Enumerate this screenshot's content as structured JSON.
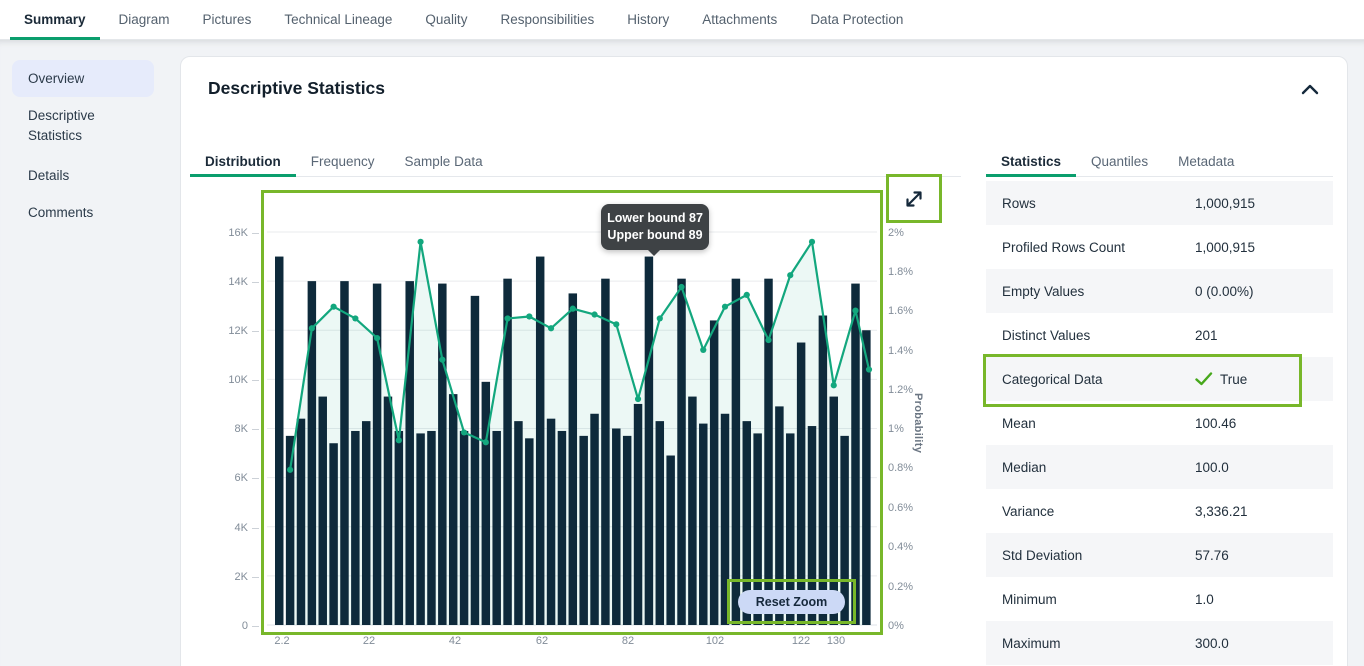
{
  "nav": {
    "tabs": [
      "Summary",
      "Diagram",
      "Pictures",
      "Technical Lineage",
      "Quality",
      "Responsibilities",
      "History",
      "Attachments",
      "Data Protection"
    ],
    "active_tab": "Summary"
  },
  "sidebar": {
    "items": [
      "Overview",
      "Descriptive Statistics",
      "Details",
      "Comments"
    ],
    "active_item": "Overview"
  },
  "panel": {
    "title": "Descriptive Statistics"
  },
  "chart_tabs": {
    "items": [
      "Distribution",
      "Frequency",
      "Sample Data"
    ],
    "active": "Distribution"
  },
  "stats_tabs": {
    "items": [
      "Statistics",
      "Quantiles",
      "Metadata"
    ],
    "active": "Statistics"
  },
  "stats": {
    "rows": [
      {
        "label": "Rows",
        "value": "1,000,915"
      },
      {
        "label": "Profiled Rows Count",
        "value": "1,000,915"
      },
      {
        "label": "Empty Values",
        "value": "0 (0.00%)"
      },
      {
        "label": "Distinct Values",
        "value": "201"
      },
      {
        "label": "Categorical Data",
        "value": "True",
        "check": true
      },
      {
        "label": "Mean",
        "value": "100.46"
      },
      {
        "label": "Median",
        "value": "100.0"
      },
      {
        "label": "Variance",
        "value": "3,336.21"
      },
      {
        "label": "Std Deviation",
        "value": "57.76"
      },
      {
        "label": "Minimum",
        "value": "1.0"
      },
      {
        "label": "Maximum",
        "value": "300.0"
      }
    ]
  },
  "chart_data": {
    "type": "bar",
    "subtype": "histogram_with_probability_line",
    "x_axis": {
      "ticks": [
        "2.2",
        "22",
        "42",
        "62",
        "82",
        "102",
        "122",
        "130"
      ]
    },
    "y_axis_left": {
      "ticks_top_to_bottom": [
        "16K",
        "14K",
        "12K",
        "10K",
        "8K",
        "6K",
        "4K",
        "2K",
        "0"
      ],
      "max_value": 16000
    },
    "y_axis_right": {
      "label": "Probability",
      "ticks_top_to_bottom": [
        "2%",
        "1.8%",
        "1.6%",
        "1.4%",
        "1.2%",
        "1%",
        "0.8%",
        "0.6%",
        "0.4%",
        "0.2%",
        "0%"
      ],
      "max_pct": 2
    },
    "bars_thousands": [
      15.0,
      7.7,
      8.4,
      14.0,
      9.3,
      7.4,
      14.0,
      7.9,
      8.3,
      13.9,
      9.3,
      7.9,
      14.0,
      7.8,
      7.9,
      13.9,
      9.4,
      7.9,
      13.4,
      9.9,
      7.9,
      14.1,
      8.3,
      7.6,
      15.0,
      8.4,
      7.9,
      13.5,
      7.7,
      8.6,
      14.1,
      8.0,
      7.7,
      9.0,
      15.0,
      8.3,
      6.9,
      14.1,
      9.3,
      8.2,
      12.4,
      8.6,
      14.1,
      8.3,
      7.8,
      14.1,
      8.9,
      7.8,
      11.5,
      8.1,
      12.6,
      9.3,
      7.7,
      13.9,
      12.0
    ],
    "line_probability_pct": [
      0.79,
      1.51,
      1.62,
      1.56,
      1.46,
      0.94,
      1.95,
      1.35,
      0.98,
      0.93,
      1.56,
      1.57,
      1.51,
      1.61,
      1.58,
      1.53,
      1.15,
      1.56,
      1.72,
      1.4,
      1.62,
      1.68,
      1.45,
      1.78,
      1.95,
      1.22,
      1.6,
      1.3
    ],
    "tooltip": {
      "line1": "Lower bound 87",
      "line2": "Upper bound 89"
    },
    "reset_zoom_label": "Reset Zoom",
    "legend_position": "none",
    "grid": true,
    "colors": {
      "bar": "#0e2a3b",
      "line": "#13a77e",
      "area": "rgba(19,167,126,0.08)",
      "grid": "#e9ebee",
      "baseline": "#dfe3e8",
      "accent": "#0a9e6d",
      "annotation": "#78b72a",
      "check": "#47a81c"
    }
  }
}
